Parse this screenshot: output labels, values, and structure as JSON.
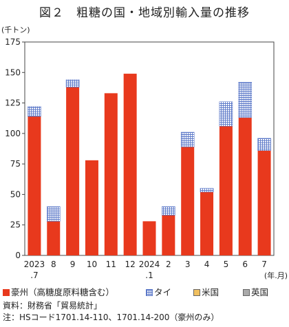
{
  "title": "図２　粗糖の国・地域別輸入量の推移",
  "chart_data": {
    "type": "bar",
    "stacked": true,
    "unit_label": "(千トン)",
    "xaxis_unit": "(年.月)",
    "categories": [
      {
        "line1": "2023",
        "line2": ".7"
      },
      {
        "line1": "8",
        "line2": ""
      },
      {
        "line1": "9",
        "line2": ""
      },
      {
        "line1": "10",
        "line2": ""
      },
      {
        "line1": "11",
        "line2": ""
      },
      {
        "line1": "12",
        "line2": ""
      },
      {
        "line1": "2024",
        "line2": ".1"
      },
      {
        "line1": "2",
        "line2": ""
      },
      {
        "line1": "3",
        "line2": ""
      },
      {
        "line1": "4",
        "line2": ""
      },
      {
        "line1": "5",
        "line2": ""
      },
      {
        "line1": "6",
        "line2": ""
      },
      {
        "line1": "7",
        "line2": ""
      }
    ],
    "series": [
      {
        "name": "豪州（高糖度原料糖含む）",
        "color": "#e8391d",
        "pattern": "solid",
        "values": [
          114,
          28,
          138,
          78,
          133,
          149,
          28,
          33,
          89,
          52,
          106,
          113,
          86
        ]
      },
      {
        "name": "タイ",
        "color": "#5b78c8",
        "pattern": "grid",
        "values": [
          8,
          12,
          6,
          0,
          0,
          0,
          0,
          7,
          12,
          3,
          20,
          29,
          10
        ]
      },
      {
        "name": "米国",
        "color": "#f0c060",
        "pattern": "swatch",
        "values": [
          0,
          0,
          0,
          0,
          0,
          0,
          0,
          0,
          0,
          0,
          0,
          0,
          0
        ]
      },
      {
        "name": "英国",
        "color": "#aaaaaa",
        "pattern": "swatch",
        "values": [
          0,
          0,
          0,
          0,
          0,
          0,
          0,
          0,
          0,
          0,
          0,
          0,
          0
        ]
      }
    ],
    "ylim": [
      0,
      175
    ],
    "yticks": [
      0,
      25,
      50,
      75,
      100,
      125,
      150,
      175
    ],
    "grid": false,
    "legend_position": "bottom"
  },
  "notes": {
    "source": "資料：財務省「貿易統計」",
    "note": "注：HSコード1701.14-110、1701.14-200（豪州のみ）"
  }
}
